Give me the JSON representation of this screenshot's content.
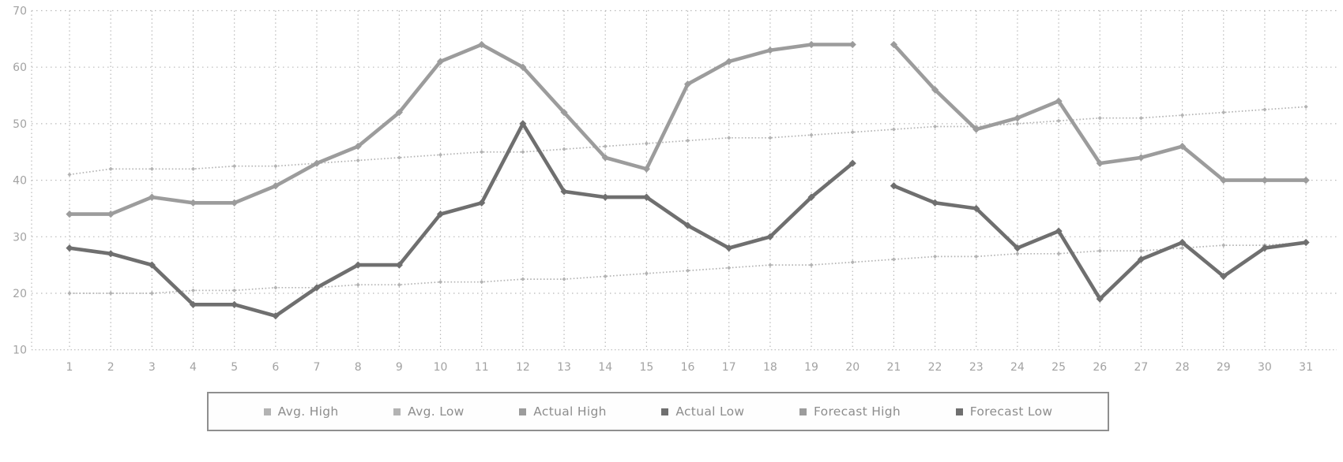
{
  "chart_data": {
    "type": "line",
    "title": "",
    "xlabel": "",
    "ylabel": "",
    "x": [
      1,
      2,
      3,
      4,
      5,
      6,
      7,
      8,
      9,
      10,
      11,
      12,
      13,
      14,
      15,
      16,
      17,
      18,
      19,
      20,
      21,
      22,
      23,
      24,
      25,
      26,
      27,
      28,
      29,
      30,
      31
    ],
    "ylim": [
      10,
      70
    ],
    "yticks": [
      10,
      20,
      30,
      40,
      50,
      60,
      70
    ],
    "grid": true,
    "legend_position": "bottom",
    "series": [
      {
        "name": "Avg. High",
        "style": "dotted",
        "color": "#b3b3b3",
        "values": [
          41,
          42,
          42,
          42,
          42.5,
          42.5,
          43,
          43.5,
          44,
          44.5,
          45,
          45,
          45.5,
          46,
          46.5,
          47,
          47.5,
          47.5,
          48,
          48.5,
          49,
          49.5,
          49.5,
          50,
          50.5,
          51,
          51,
          51.5,
          52,
          52.5,
          53
        ]
      },
      {
        "name": "Avg. Low",
        "style": "dotted",
        "color": "#b3b3b3",
        "values": [
          20,
          20,
          20,
          20.5,
          20.5,
          21,
          21,
          21.5,
          21.5,
          22,
          22,
          22.5,
          22.5,
          23,
          23.5,
          24,
          24.5,
          25,
          25,
          25.5,
          26,
          26.5,
          26.5,
          27,
          27,
          27.5,
          27.5,
          28,
          28.5,
          28.5,
          29
        ]
      },
      {
        "name": "Actual High",
        "style": "thick",
        "color": "#9c9c9c",
        "values": [
          34,
          34,
          37,
          36,
          36,
          39,
          43,
          46,
          52,
          61,
          64,
          60,
          52,
          44,
          42,
          57,
          61,
          63,
          64,
          64,
          null,
          null,
          null,
          null,
          null,
          null,
          null,
          null,
          null,
          null,
          null
        ]
      },
      {
        "name": "Actual Low",
        "style": "thick",
        "color": "#6f6f6f",
        "values": [
          28,
          27,
          25,
          18,
          18,
          16,
          21,
          25,
          25,
          34,
          36,
          50,
          38,
          37,
          37,
          32,
          28,
          30,
          37,
          43,
          null,
          null,
          null,
          null,
          null,
          null,
          null,
          null,
          null,
          null,
          null
        ]
      },
      {
        "name": "Forecast High",
        "style": "thick",
        "color": "#9c9c9c",
        "values": [
          null,
          null,
          null,
          null,
          null,
          null,
          null,
          null,
          null,
          null,
          null,
          null,
          null,
          null,
          null,
          null,
          null,
          null,
          null,
          null,
          64,
          56,
          49,
          51,
          54,
          43,
          44,
          46,
          40,
          40,
          40
        ]
      },
      {
        "name": "Forecast Low",
        "style": "thick",
        "color": "#6f6f6f",
        "values": [
          null,
          null,
          null,
          null,
          null,
          null,
          null,
          null,
          null,
          null,
          null,
          null,
          null,
          null,
          null,
          null,
          null,
          null,
          null,
          null,
          39,
          36,
          35,
          28,
          31,
          19,
          26,
          29,
          23,
          28,
          29
        ]
      }
    ]
  },
  "axis": {
    "y_labels": [
      "70",
      "60",
      "50",
      "40",
      "30",
      "20",
      "10"
    ],
    "x_labels": [
      "1",
      "2",
      "3",
      "4",
      "5",
      "6",
      "7",
      "8",
      "9",
      "10",
      "11",
      "12",
      "13",
      "14",
      "15",
      "16",
      "17",
      "18",
      "19",
      "20",
      "21",
      "22",
      "23",
      "24",
      "25",
      "26",
      "27",
      "28",
      "29",
      "30",
      "31"
    ]
  },
  "legend": {
    "items": [
      {
        "label": "Avg. High",
        "color": "#b3b3b3"
      },
      {
        "label": "Avg. Low",
        "color": "#b3b3b3"
      },
      {
        "label": "Actual High",
        "color": "#9c9c9c"
      },
      {
        "label": "Actual Low",
        "color": "#6f6f6f"
      },
      {
        "label": "Forecast High",
        "color": "#9c9c9c"
      },
      {
        "label": "Forecast Low",
        "color": "#6f6f6f"
      }
    ]
  },
  "colors": {
    "grid": "#b9b9b9",
    "axis_text": "#a2a2a2",
    "legend_text": "#8d8d8d",
    "legend_border": "#8f8f8f",
    "background": "#ffffff"
  }
}
